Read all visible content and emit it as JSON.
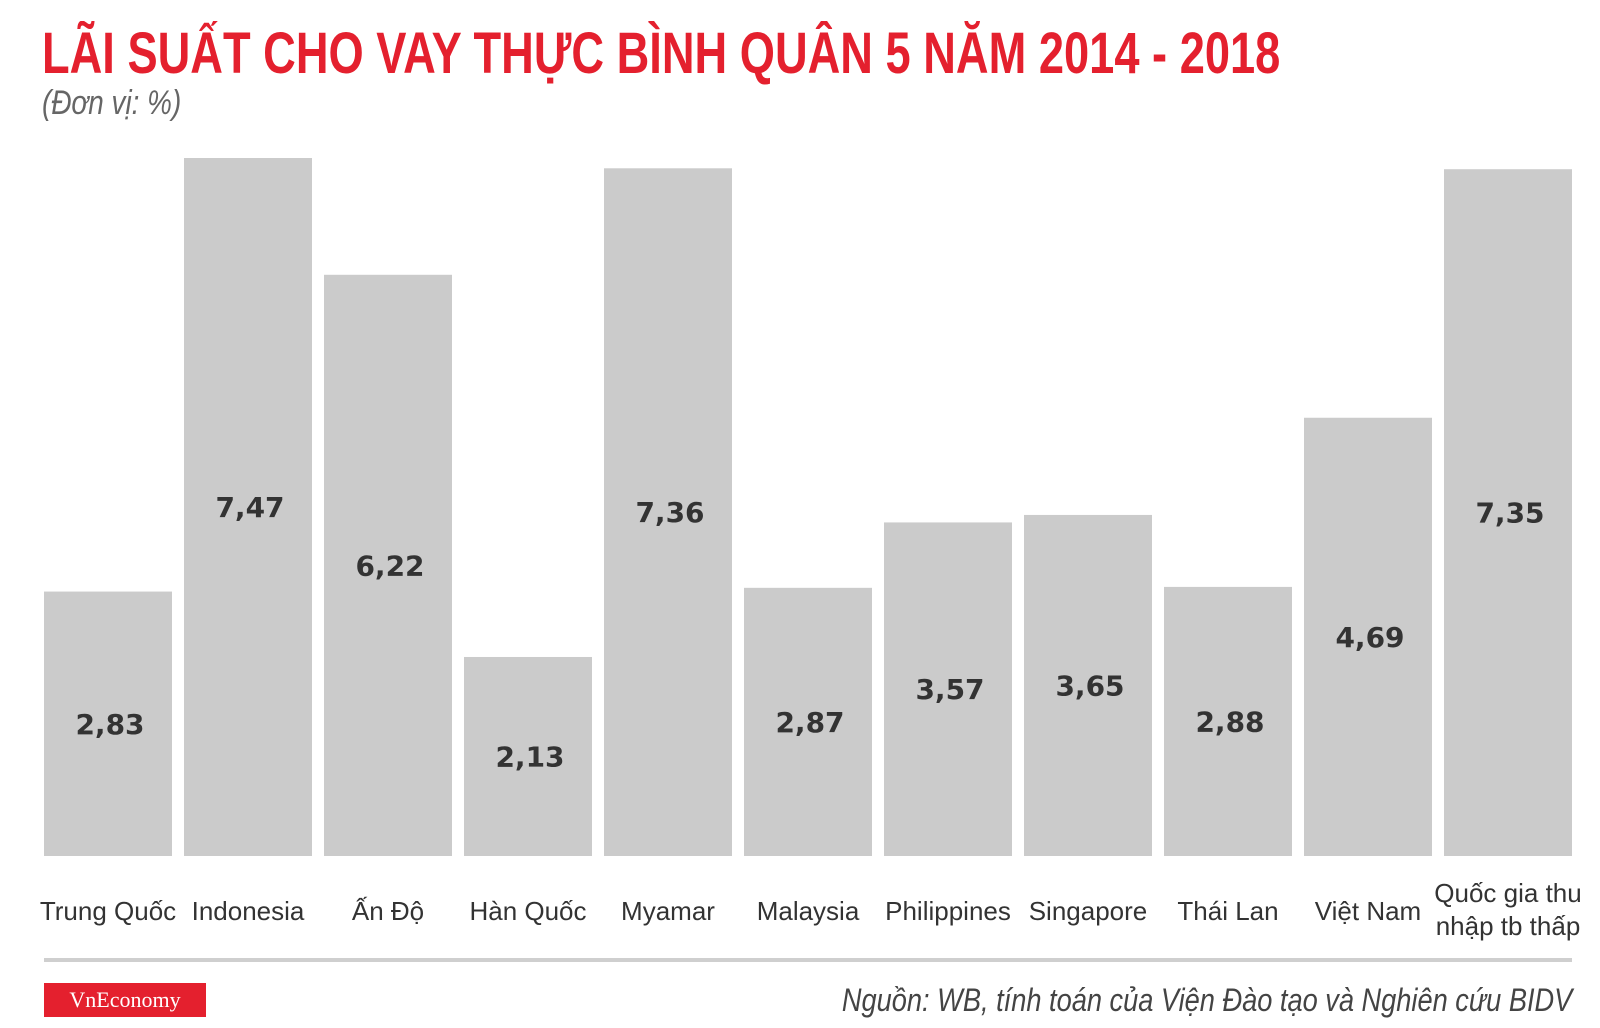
{
  "chart_data": {
    "type": "bar",
    "title": "LÃI SUẤT CHO VAY THỰC BÌNH QUÂN 5 NĂM 2014 - 2018",
    "subtitle": "(Đơn vị: %)",
    "categories": [
      "Trung Quốc",
      "Indonesia",
      "Ấn Độ",
      "Hàn Quốc",
      "Myamar",
      "Malaysia",
      "Philippines",
      "Singapore",
      "Thái Lan",
      "Việt Nam",
      "Quốc gia thu|nhập tb thấp"
    ],
    "values": [
      2.83,
      7.47,
      6.22,
      2.13,
      7.36,
      2.87,
      3.57,
      3.65,
      2.88,
      4.69,
      7.35
    ],
    "value_labels": [
      "2,83",
      "7,47",
      "6,22",
      "2,13",
      "7,36",
      "2,87",
      "3,57",
      "3,65",
      "2,88",
      "4,69",
      "7,35"
    ],
    "xlabel": "",
    "ylabel": "",
    "ylim": [
      0,
      7.47
    ],
    "grid": false,
    "bar_color": "#cbcbcb"
  },
  "footer": {
    "logo": "VnEconomy",
    "source": "Nguồn: WB, tính toán của Viện Đào tạo và Nghiên cứu BIDV"
  },
  "colors": {
    "accent": "#e4202e"
  }
}
